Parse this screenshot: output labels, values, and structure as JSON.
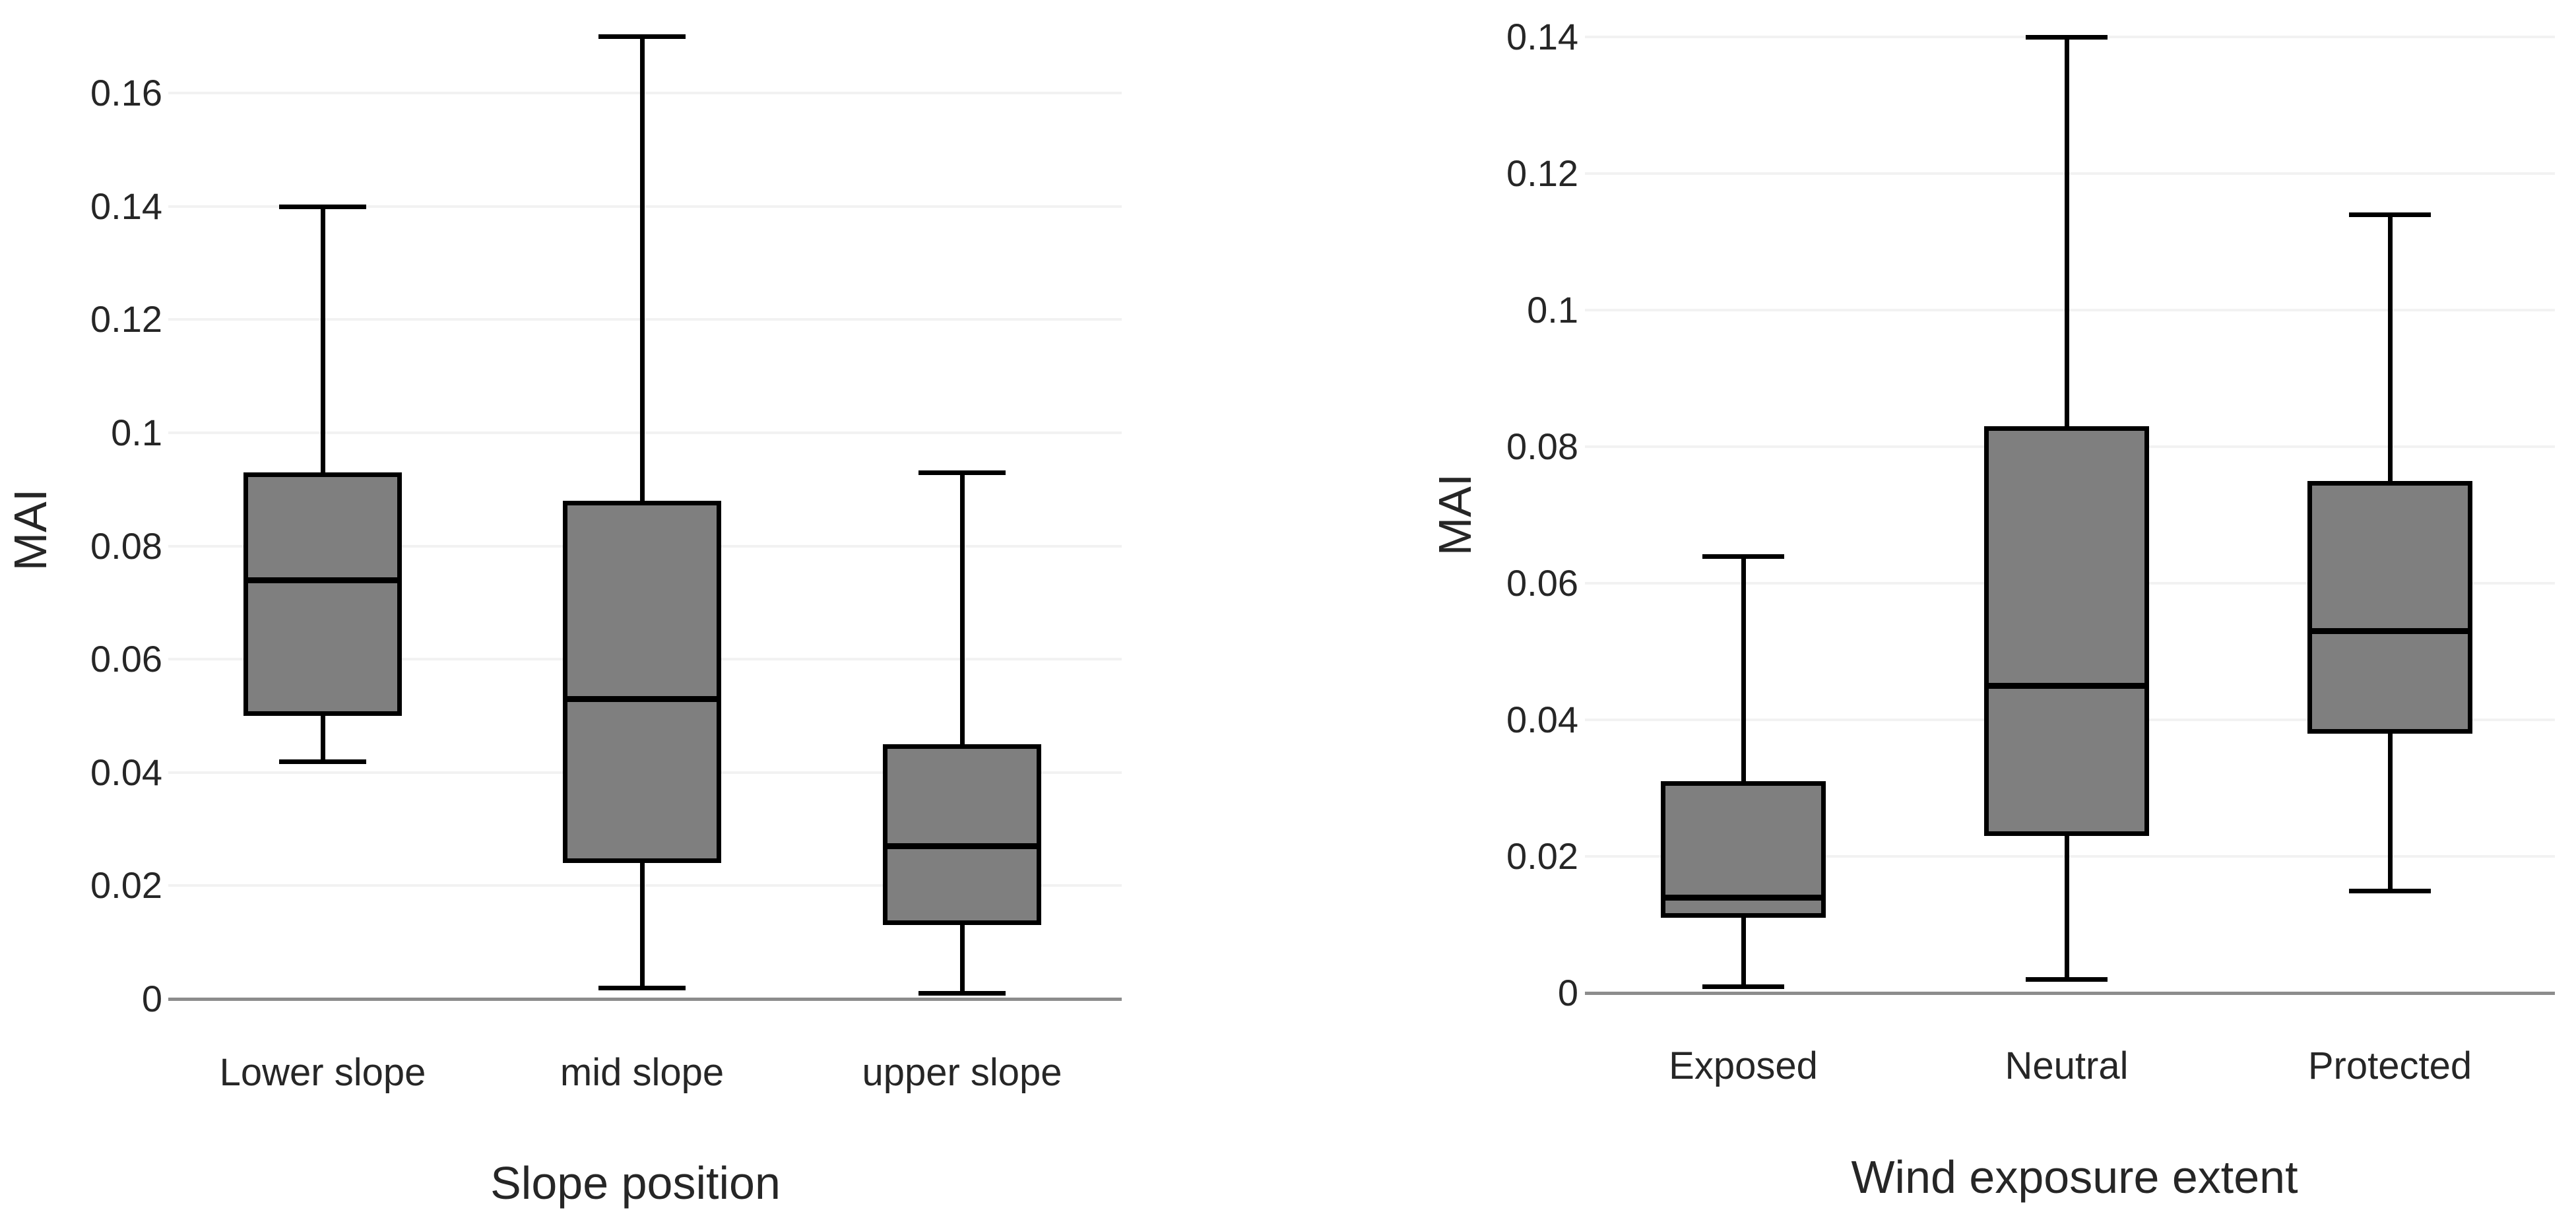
{
  "figure": {
    "background": "#ffffff",
    "box_fill": "#7f7f7f",
    "box_border": "#000000",
    "median_color": "#000000",
    "gridline_color": "#f2f2f2",
    "baseline_color": "#8c8c8c",
    "text_color": "#262626"
  },
  "chart_data": [
    {
      "type": "box",
      "title": "",
      "xlabel": "Slope position",
      "ylabel": "MAI",
      "ylim": [
        0,
        0.17
      ],
      "grid": "horizontal",
      "legend": "none",
      "ytick_labels": [
        "0",
        "0.02",
        "0.04",
        "0.06",
        "0.08",
        "0.1",
        "0.12",
        "0.14",
        "0.16"
      ],
      "categories": [
        "Lower slope",
        "mid slope",
        "upper slope"
      ],
      "series": [
        {
          "category": "Lower slope",
          "min": 0.042,
          "q1": 0.05,
          "median": 0.074,
          "q3": 0.093,
          "max": 0.14
        },
        {
          "category": "mid slope",
          "min": 0.002,
          "q1": 0.024,
          "median": 0.053,
          "q3": 0.088,
          "max": 0.17
        },
        {
          "category": "upper slope",
          "min": 0.001,
          "q1": 0.013,
          "median": 0.027,
          "q3": 0.045,
          "max": 0.093
        }
      ]
    },
    {
      "type": "box",
      "title": "",
      "xlabel": "Wind exposure extent",
      "ylabel": "MAI",
      "ylim": [
        0,
        0.145
      ],
      "grid": "horizontal",
      "legend": "none",
      "ytick_labels": [
        "0",
        "0.02",
        "0.04",
        "0.06",
        "0.08",
        "0.1",
        "0.12",
        "0.14"
      ],
      "categories": [
        "Exposed",
        "Neutral",
        "Protected"
      ],
      "series": [
        {
          "category": "Exposed",
          "min": 0.001,
          "q1": 0.011,
          "median": 0.014,
          "q3": 0.031,
          "max": 0.064
        },
        {
          "category": "Neutral",
          "min": 0.002,
          "q1": 0.023,
          "median": 0.045,
          "q3": 0.083,
          "max": 0.14
        },
        {
          "category": "Protected",
          "min": 0.015,
          "q1": 0.038,
          "median": 0.053,
          "q3": 0.075,
          "max": 0.114
        }
      ]
    }
  ]
}
